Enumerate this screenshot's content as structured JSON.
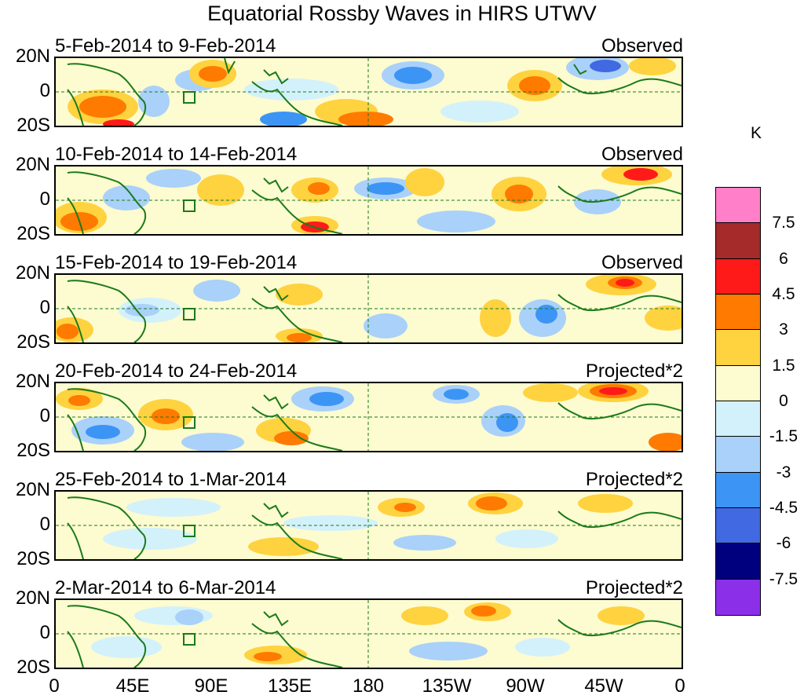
{
  "title": "Equatorial Rossby Waves in HIRS UTWV",
  "lat_labels": [
    "20N",
    "0",
    "20S"
  ],
  "lon_labels": [
    "0",
    "45E",
    "90E",
    "135E",
    "180",
    "135W",
    "90W",
    "45W",
    "0"
  ],
  "colorbar": {
    "units": "K",
    "labels": [
      "7.5",
      "6",
      "4.5",
      "3",
      "1.5",
      "0",
      "-1.5",
      "-3",
      "-4.5",
      "-6",
      "-7.5"
    ],
    "colors": [
      "#ff7fc9",
      "#a52a2a",
      "#ff1a1a",
      "#ff7a00",
      "#ffd23f",
      "#fdfbd0",
      "#d3f1fb",
      "#a9d1fa",
      "#3c95f5",
      "#4169e1",
      "#00007f",
      "#8b30e8"
    ]
  },
  "panels": [
    {
      "date": "5-Feb-2014 to 9-Feb-2014",
      "type": "Observed"
    },
    {
      "date": "10-Feb-2014 to 14-Feb-2014",
      "type": "Observed"
    },
    {
      "date": "15-Feb-2014 to 19-Feb-2014",
      "type": "Observed"
    },
    {
      "date": "20-Feb-2014 to 24-Feb-2014",
      "type": "Projected*2"
    },
    {
      "date": "25-Feb-2014 to 1-Mar-2014",
      "type": "Projected*2"
    },
    {
      "date": "2-Mar-2014 to 6-Mar-2014",
      "type": "Projected*2"
    }
  ]
}
